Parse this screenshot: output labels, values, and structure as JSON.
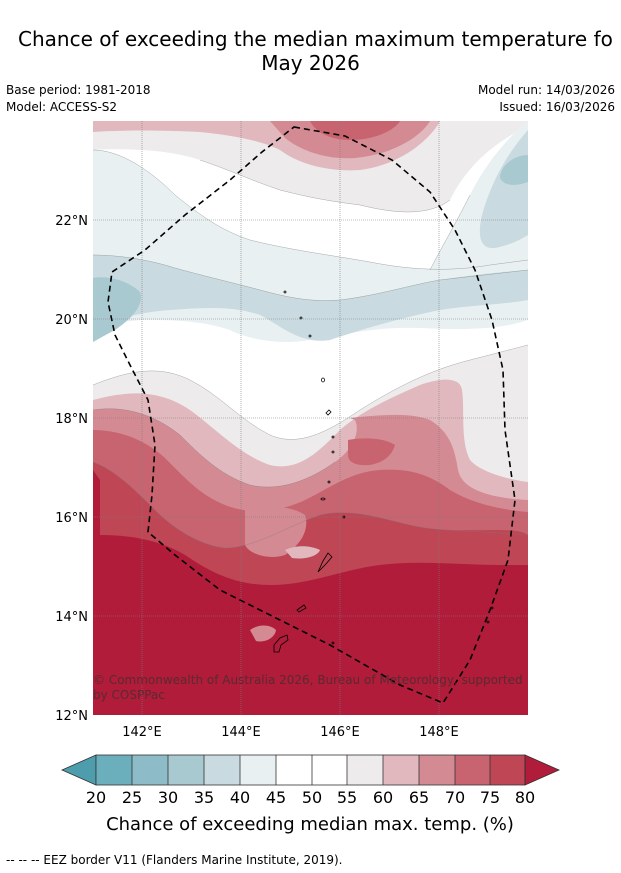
{
  "title": {
    "line1": "Chance of exceeding the median maximum temperature fo",
    "line2": "May 2026"
  },
  "meta": {
    "base_period": "Base period: 1981-2018",
    "model": "Model: ACCESS-S2",
    "model_run": "Model run: 14/03/2026",
    "issued": "Issued: 16/03/2026"
  },
  "map": {
    "lat_labels": [
      "22°N",
      "20°N",
      "18°N",
      "16°N",
      "14°N",
      "12°N"
    ],
    "lon_labels": [
      "142°E",
      "144°E",
      "146°E",
      "148°E"
    ],
    "copyright": "© Commonwealth of Australia 2026, Bureau of Meteorology, supported",
    "copyright2": "by COSPPac"
  },
  "legend": {
    "ticks": [
      "20",
      "25",
      "30",
      "35",
      "40",
      "45",
      "50",
      "55",
      "60",
      "65",
      "70",
      "75",
      "80"
    ],
    "label": "Chance of exceeding median max. temp. (%)",
    "colors": [
      "#4d9dad",
      "#6bafbc",
      "#8dbcc8",
      "#a9c9d0",
      "#c9dbe0",
      "#e9f0f2",
      "#ffffff",
      "#ffffff",
      "#eeebec",
      "#e0b8be",
      "#d48a93",
      "#c86470",
      "#be4655",
      "#b01c3a"
    ]
  },
  "footer": {
    "border_note": "--  --  -- EEZ border V11 (Flanders Marine Institute, 2019)."
  }
}
